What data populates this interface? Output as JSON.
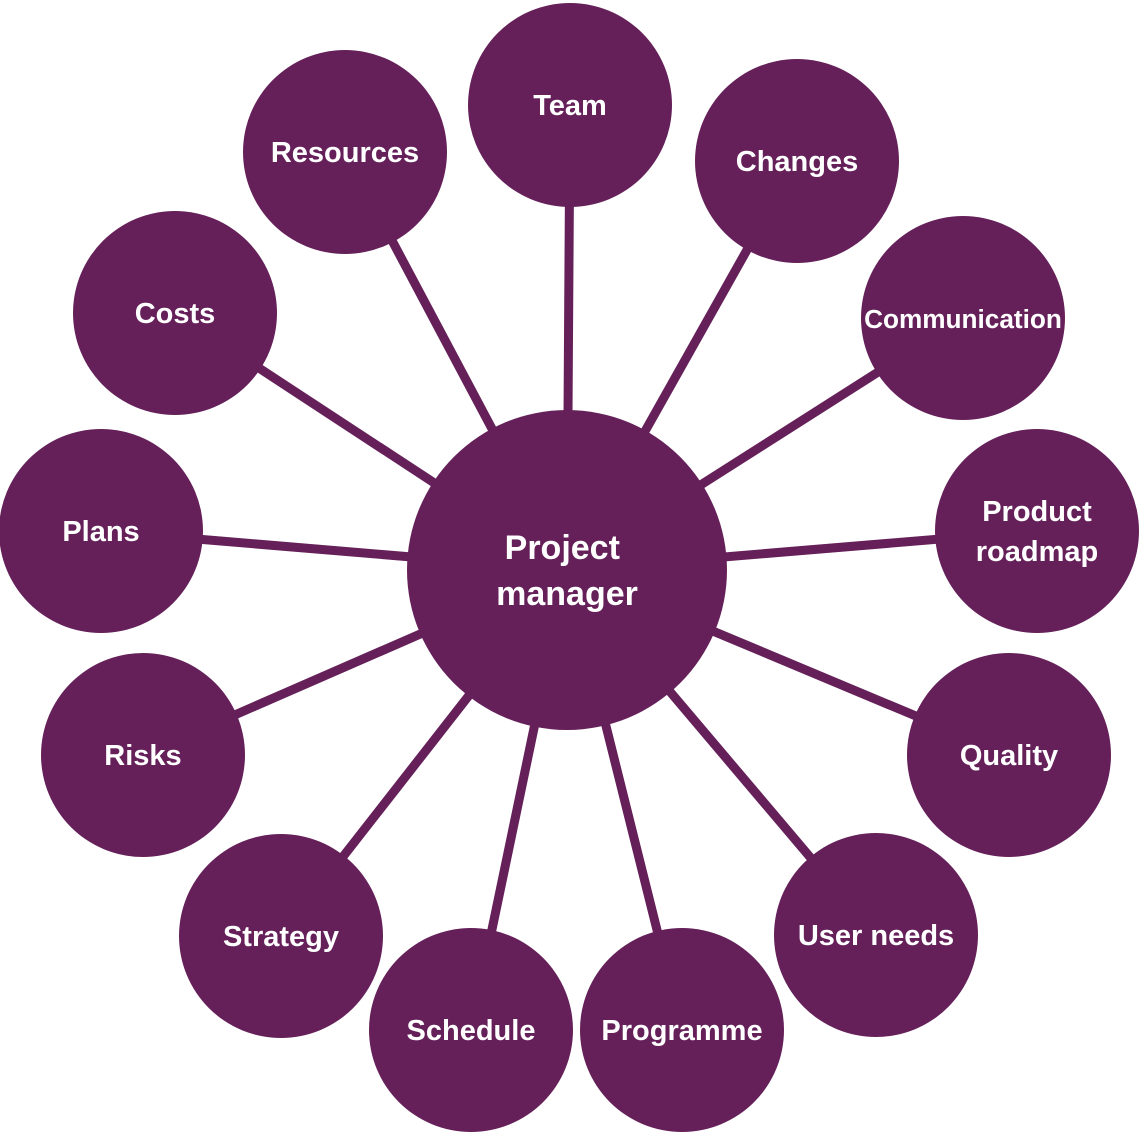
{
  "colors": {
    "node_fill": "#65205a",
    "connector": "#65205a",
    "label": "#ffffff",
    "background": "#ffffff"
  },
  "center": {
    "lines": [
      "Project",
      "manager"
    ]
  },
  "nodes": [
    {
      "id": "team",
      "lines": [
        "Team"
      ]
    },
    {
      "id": "changes",
      "lines": [
        "Changes"
      ]
    },
    {
      "id": "communication",
      "lines": [
        "Communication"
      ]
    },
    {
      "id": "product-roadmap",
      "lines": [
        "Product",
        "roadmap"
      ]
    },
    {
      "id": "quality",
      "lines": [
        "Quality"
      ]
    },
    {
      "id": "user-needs",
      "lines": [
        "User needs"
      ]
    },
    {
      "id": "programme",
      "lines": [
        "Programme"
      ]
    },
    {
      "id": "schedule",
      "lines": [
        "Schedule"
      ]
    },
    {
      "id": "strategy",
      "lines": [
        "Strategy"
      ]
    },
    {
      "id": "risks",
      "lines": [
        "Risks"
      ]
    },
    {
      "id": "plans",
      "lines": [
        "Plans"
      ]
    },
    {
      "id": "costs",
      "lines": [
        "Costs"
      ]
    },
    {
      "id": "resources",
      "lines": [
        "Resources"
      ]
    }
  ]
}
